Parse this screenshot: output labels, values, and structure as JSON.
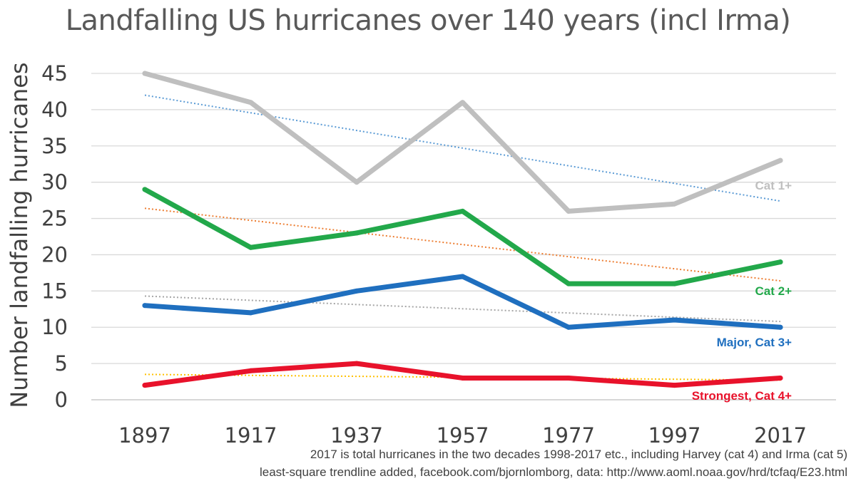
{
  "chart_data": {
    "type": "line",
    "title": "Landfalling US hurricanes over 140 years (incl Irma)",
    "ylabel": "Number landfalling hurricanes",
    "xlabel": "",
    "categories": [
      "1897",
      "1917",
      "1937",
      "1957",
      "1977",
      "1997",
      "2017"
    ],
    "ylim": [
      0,
      45
    ],
    "yticks": [
      0,
      5,
      10,
      15,
      20,
      25,
      30,
      35,
      40,
      45
    ],
    "grid": true,
    "series": [
      {
        "name": "Cat 1+",
        "values": [
          45,
          41,
          30,
          41,
          26,
          27,
          33
        ],
        "color": "#BFBFBF",
        "trendline": {
          "start": 42,
          "end": 27.4,
          "color": "#5B9BD5"
        }
      },
      {
        "name": "Cat 2+",
        "values": [
          29,
          21,
          23,
          26,
          16,
          16,
          19
        ],
        "color": "#22A84A",
        "trendline": {
          "start": 26.4,
          "end": 16.4,
          "color": "#ED7D31"
        }
      },
      {
        "name": "Major, Cat 3+",
        "values": [
          13,
          12,
          15,
          17,
          10,
          11,
          10
        ],
        "color": "#1F6FBF",
        "trendline": {
          "start": 14.3,
          "end": 10.8,
          "color": "#A5A5A5"
        }
      },
      {
        "name": "Strongest, Cat 4+",
        "values": [
          2,
          4,
          5,
          3,
          3,
          2,
          3
        ],
        "color": "#E8122B",
        "trendline": {
          "start": 3.5,
          "end": 2.7,
          "color": "#FFC000"
        }
      }
    ],
    "annotations": [
      "2017 is total hurricanes in the two decades 1998-2017 etc., including Harvey (cat 4) and Irma (cat 5)",
      "least-square trendline added, facebook.com/bjornlomborg, data: http://www.aoml.noaa.gov/hrd/tcfaq/E23.html"
    ]
  }
}
